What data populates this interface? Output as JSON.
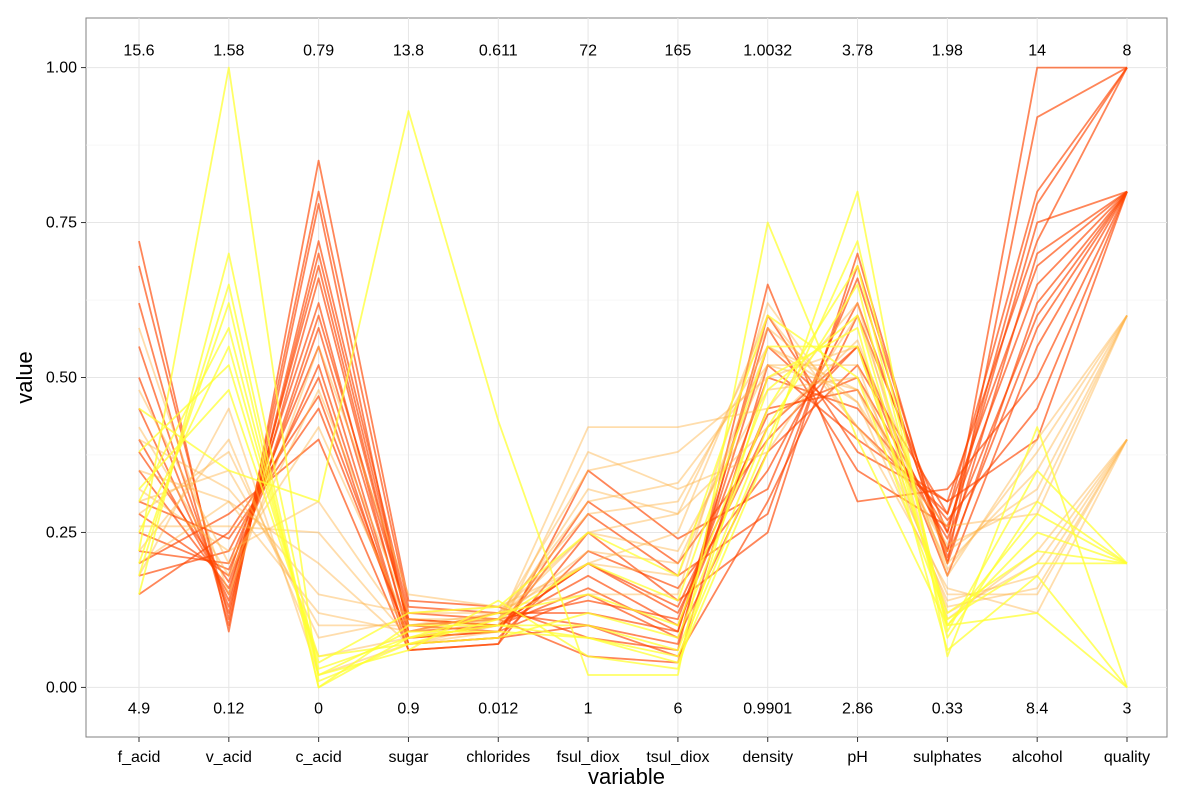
{
  "chart_data": {
    "type": "parallel-coordinates",
    "xlabel": "variable",
    "ylabel": "value",
    "ylim": [
      -0.08,
      1.08
    ],
    "yticks": [
      "0.00",
      "0.25",
      "0.50",
      "0.75",
      "1.00"
    ],
    "ytick_values": [
      0,
      0.25,
      0.5,
      0.75,
      1.0
    ],
    "grid": true,
    "legend": "none",
    "variables": [
      "f_acid",
      "v_acid",
      "c_acid",
      "sugar",
      "chlorides",
      "fsul_diox",
      "tsul_diox",
      "density",
      "pH",
      "sulphates",
      "alcohol",
      "quality"
    ],
    "max_labels": [
      "15.6",
      "1.58",
      "0.79",
      "13.8",
      "0.611",
      "72",
      "165",
      "1.0032",
      "3.78",
      "1.98",
      "14",
      "8"
    ],
    "min_labels": [
      "4.9",
      "0.12",
      "0",
      "0.9",
      "0.012",
      "1",
      "6",
      "0.9901",
      "2.86",
      "0.33",
      "8.4",
      "3"
    ],
    "colors": {
      "low_quality": "#FFFF33",
      "mid_quality": "#FFB347",
      "high_quality": "#FF4500",
      "grid_major": "#E6E6E6",
      "grid_minor": "#F3F3F3",
      "panel_border": "#808080"
    },
    "series": [
      {
        "quality": 8,
        "values": [
          0.28,
          0.18,
          0.62,
          0.08,
          0.1,
          0.2,
          0.12,
          0.42,
          0.55,
          0.22,
          1.0,
          1.0
        ]
      },
      {
        "quality": 8,
        "values": [
          0.4,
          0.15,
          0.68,
          0.1,
          0.09,
          0.15,
          0.08,
          0.38,
          0.52,
          0.28,
          0.8,
          1.0
        ]
      },
      {
        "quality": 8,
        "values": [
          0.22,
          0.2,
          0.55,
          0.07,
          0.08,
          0.1,
          0.05,
          0.3,
          0.6,
          0.25,
          0.78,
          1.0
        ]
      },
      {
        "quality": 8,
        "values": [
          0.55,
          0.12,
          0.72,
          0.12,
          0.11,
          0.05,
          0.04,
          0.52,
          0.4,
          0.3,
          0.72,
          1.0
        ]
      },
      {
        "quality": 8,
        "values": [
          0.18,
          0.22,
          0.5,
          0.06,
          0.07,
          0.25,
          0.14,
          0.25,
          0.7,
          0.2,
          0.92,
          1.0
        ]
      },
      {
        "quality": 7,
        "values": [
          0.62,
          0.1,
          0.78,
          0.09,
          0.12,
          0.12,
          0.09,
          0.58,
          0.35,
          0.26,
          0.65,
          0.8
        ]
      },
      {
        "quality": 7,
        "values": [
          0.35,
          0.16,
          0.6,
          0.11,
          0.1,
          0.18,
          0.1,
          0.45,
          0.48,
          0.24,
          0.6,
          0.8
        ]
      },
      {
        "quality": 7,
        "values": [
          0.3,
          0.24,
          0.45,
          0.08,
          0.09,
          0.3,
          0.2,
          0.4,
          0.55,
          0.18,
          0.55,
          0.8
        ]
      },
      {
        "quality": 7,
        "values": [
          0.72,
          0.09,
          0.85,
          0.14,
          0.13,
          0.08,
          0.06,
          0.65,
          0.3,
          0.32,
          0.5,
          0.8
        ]
      },
      {
        "quality": 7,
        "values": [
          0.25,
          0.19,
          0.52,
          0.07,
          0.08,
          0.22,
          0.16,
          0.35,
          0.62,
          0.22,
          0.7,
          0.8
        ]
      },
      {
        "quality": 7,
        "values": [
          0.45,
          0.14,
          0.66,
          0.1,
          0.11,
          0.14,
          0.11,
          0.5,
          0.45,
          0.27,
          0.45,
          0.8
        ]
      },
      {
        "quality": 7,
        "values": [
          0.2,
          0.28,
          0.4,
          0.06,
          0.07,
          0.35,
          0.24,
          0.32,
          0.66,
          0.2,
          0.62,
          0.8
        ]
      },
      {
        "quality": 7,
        "values": [
          0.68,
          0.11,
          0.8,
          0.13,
          0.12,
          0.1,
          0.07,
          0.6,
          0.38,
          0.3,
          0.4,
          0.8
        ]
      },
      {
        "quality": 7,
        "values": [
          0.38,
          0.17,
          0.58,
          0.09,
          0.1,
          0.2,
          0.13,
          0.44,
          0.5,
          0.25,
          0.75,
          0.8
        ]
      },
      {
        "quality": 7,
        "values": [
          0.15,
          0.25,
          0.47,
          0.08,
          0.09,
          0.28,
          0.18,
          0.28,
          0.68,
          0.21,
          0.58,
          0.8
        ]
      },
      {
        "quality": 7,
        "values": [
          0.5,
          0.13,
          0.7,
          0.11,
          0.1,
          0.16,
          0.09,
          0.55,
          0.42,
          0.28,
          0.68,
          0.8
        ]
      },
      {
        "quality": 6,
        "values": [
          0.32,
          0.22,
          0.3,
          0.09,
          0.11,
          0.25,
          0.22,
          0.48,
          0.5,
          0.2,
          0.35,
          0.6
        ]
      },
      {
        "quality": 6,
        "values": [
          0.42,
          0.18,
          0.48,
          0.12,
          0.12,
          0.2,
          0.18,
          0.55,
          0.46,
          0.23,
          0.3,
          0.6
        ]
      },
      {
        "quality": 6,
        "values": [
          0.26,
          0.26,
          0.25,
          0.08,
          0.1,
          0.32,
          0.28,
          0.42,
          0.56,
          0.19,
          0.38,
          0.6
        ]
      },
      {
        "quality": 6,
        "values": [
          0.58,
          0.15,
          0.55,
          0.15,
          0.13,
          0.15,
          0.15,
          0.62,
          0.42,
          0.26,
          0.28,
          0.6
        ]
      },
      {
        "quality": 6,
        "values": [
          0.2,
          0.3,
          0.2,
          0.07,
          0.09,
          0.38,
          0.32,
          0.38,
          0.6,
          0.18,
          0.4,
          0.6
        ]
      },
      {
        "quality": 6,
        "values": [
          0.48,
          0.2,
          0.42,
          0.1,
          0.11,
          0.22,
          0.2,
          0.52,
          0.48,
          0.22,
          0.32,
          0.6
        ]
      },
      {
        "quality": 5,
        "values": [
          0.3,
          0.35,
          0.1,
          0.1,
          0.12,
          0.28,
          0.3,
          0.55,
          0.48,
          0.15,
          0.15,
          0.4
        ]
      },
      {
        "quality": 5,
        "values": [
          0.22,
          0.4,
          0.05,
          0.08,
          0.11,
          0.35,
          0.38,
          0.5,
          0.55,
          0.12,
          0.2,
          0.4
        ]
      },
      {
        "quality": 5,
        "values": [
          0.4,
          0.32,
          0.15,
          0.12,
          0.13,
          0.2,
          0.25,
          0.6,
          0.42,
          0.16,
          0.12,
          0.4
        ]
      },
      {
        "quality": 5,
        "values": [
          0.18,
          0.45,
          0.02,
          0.07,
          0.1,
          0.42,
          0.42,
          0.45,
          0.62,
          0.11,
          0.22,
          0.4
        ]
      },
      {
        "quality": 5,
        "values": [
          0.35,
          0.3,
          0.12,
          0.09,
          0.12,
          0.25,
          0.28,
          0.58,
          0.46,
          0.14,
          0.18,
          0.4
        ]
      },
      {
        "quality": 5,
        "values": [
          0.28,
          0.38,
          0.08,
          0.11,
          0.11,
          0.3,
          0.33,
          0.52,
          0.52,
          0.13,
          0.16,
          0.4
        ]
      },
      {
        "quality": 4,
        "values": [
          0.25,
          0.55,
          0.03,
          0.08,
          0.12,
          0.15,
          0.1,
          0.48,
          0.6,
          0.1,
          0.25,
          0.2
        ]
      },
      {
        "quality": 4,
        "values": [
          0.2,
          0.62,
          0.0,
          0.1,
          0.1,
          0.1,
          0.06,
          0.42,
          0.65,
          0.08,
          0.3,
          0.2
        ]
      },
      {
        "quality": 4,
        "values": [
          0.32,
          0.48,
          0.05,
          0.07,
          0.11,
          0.2,
          0.14,
          0.55,
          0.55,
          0.12,
          0.22,
          0.2
        ]
      },
      {
        "quality": 4,
        "values": [
          0.15,
          0.7,
          0.02,
          0.09,
          0.09,
          0.08,
          0.05,
          0.4,
          0.72,
          0.09,
          0.35,
          0.2
        ]
      },
      {
        "quality": 4,
        "values": [
          0.38,
          0.52,
          0.04,
          0.12,
          0.13,
          0.25,
          0.18,
          0.6,
          0.5,
          0.11,
          0.2,
          0.2
        ]
      },
      {
        "quality": 4,
        "values": [
          0.22,
          1.0,
          0.01,
          0.07,
          0.08,
          0.12,
          0.08,
          0.45,
          0.68,
          0.1,
          0.28,
          0.2
        ]
      },
      {
        "quality": 3,
        "values": [
          0.3,
          0.58,
          0.02,
          0.06,
          0.14,
          0.05,
          0.03,
          0.5,
          0.58,
          0.06,
          0.18,
          0.0
        ]
      },
      {
        "quality": 3,
        "values": [
          0.45,
          0.35,
          0.3,
          0.93,
          0.43,
          0.02,
          0.02,
          0.75,
          0.4,
          0.1,
          0.12,
          0.0
        ]
      },
      {
        "quality": 3,
        "values": [
          0.18,
          0.65,
          0.0,
          0.08,
          0.1,
          0.08,
          0.04,
          0.38,
          0.8,
          0.05,
          0.42,
          0.0
        ]
      }
    ]
  }
}
